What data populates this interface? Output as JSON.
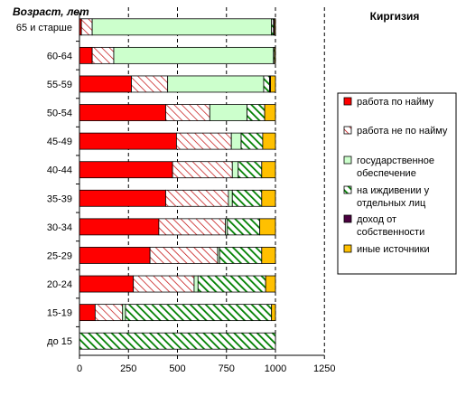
{
  "chart_data": {
    "type": "bar",
    "orientation": "horizontal",
    "stacked": true,
    "title": "Киргизия",
    "ylabel": "Возраст, лет",
    "xlabel": "",
    "xlim": [
      0,
      1250
    ],
    "xticks": [
      "0",
      "250",
      "500",
      "750",
      "1000",
      "1250"
    ],
    "grid": "vertical-dashed",
    "legend_position": "right",
    "categories": [
      "65 и старше",
      "60-64",
      "55-59",
      "50-54",
      "45-49",
      "40-44",
      "35-39",
      "30-34",
      "25-29",
      "20-24",
      "15-19",
      "до 15"
    ],
    "series": [
      {
        "name": "работа по найму",
        "color": "#ff0000",
        "pattern": "solid",
        "values": [
          10,
          65,
          265,
          440,
          495,
          475,
          440,
          405,
          360,
          275,
          80,
          0
        ]
      },
      {
        "name": "работа не по найму",
        "color": "#c00000",
        "pattern": "diagonal-hatch",
        "values": [
          55,
          110,
          185,
          225,
          280,
          305,
          320,
          340,
          345,
          310,
          140,
          0
        ]
      },
      {
        "name": "государственное обеспечение",
        "color": "#ccffcc",
        "pattern": "solid",
        "values": [
          915,
          815,
          490,
          190,
          50,
          30,
          20,
          10,
          10,
          20,
          15,
          0
        ]
      },
      {
        "name": "на иждивении у отдельных лиц",
        "color": "#008000",
        "pattern": "diagonal-stripes",
        "values": [
          10,
          5,
          30,
          90,
          110,
          120,
          150,
          165,
          215,
          345,
          745,
          1000
        ]
      },
      {
        "name": "доход от собственности",
        "color": "#4b0040",
        "pattern": "solid",
        "values": [
          5,
          0,
          5,
          0,
          0,
          0,
          0,
          0,
          0,
          0,
          0,
          0
        ]
      },
      {
        "name": "иные источники",
        "color": "#ffc000",
        "pattern": "solid",
        "values": [
          5,
          5,
          25,
          55,
          65,
          70,
          70,
          80,
          70,
          50,
          20,
          0
        ]
      }
    ]
  }
}
